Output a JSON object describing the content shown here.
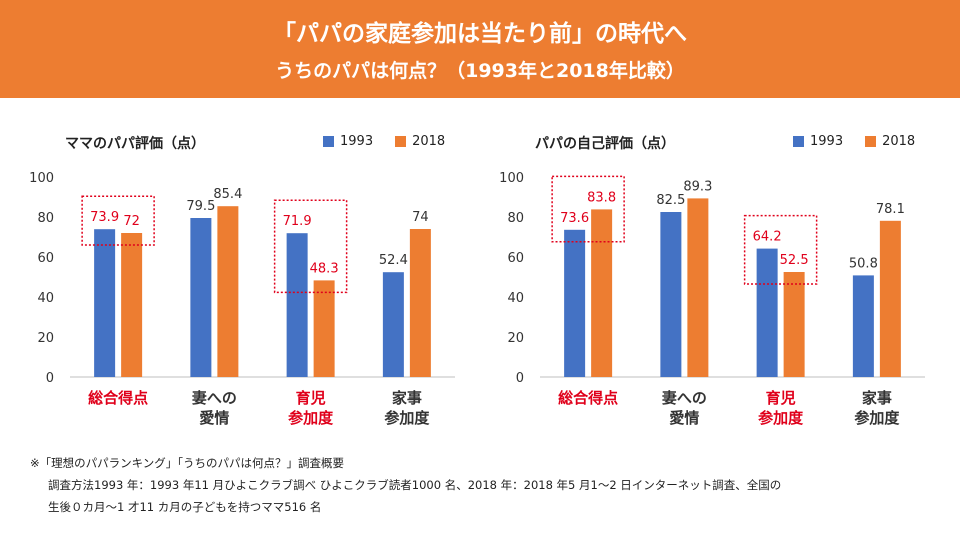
{
  "header": {
    "title": "「パパの家庭参加は当たり前」の時代へ",
    "subtitle": "うちのパパは何点？（1993年と2018年比較）"
  },
  "colors": {
    "banner": "#ed7d31",
    "s1993": "#4472c4",
    "s2018": "#ed7d31",
    "highlight": "#e0001b"
  },
  "chart_data": [
    {
      "type": "bar",
      "title": "ママのパパ評価（点）",
      "categories": [
        "総合得点",
        "妻への\n愛情",
        "育児\n参加度",
        "家事\n参加度"
      ],
      "highlighted_categories": [
        0,
        2
      ],
      "series": [
        {
          "name": "1993",
          "values": [
            73.9,
            79.5,
            71.9,
            52.4
          ]
        },
        {
          "name": "2018",
          "values": [
            72,
            85.4,
            48.3,
            74
          ]
        }
      ],
      "ylim": [
        0,
        100
      ],
      "yticks": [
        0,
        20,
        40,
        60,
        80,
        100
      ],
      "legend": "top-right"
    },
    {
      "type": "bar",
      "title": "パパの自己評価（点）",
      "categories": [
        "総合得点",
        "妻への\n愛情",
        "育児\n参加度",
        "家事\n参加度"
      ],
      "highlighted_categories": [
        0,
        2
      ],
      "series": [
        {
          "name": "1993",
          "values": [
            73.6,
            82.5,
            64.2,
            50.8
          ]
        },
        {
          "name": "2018",
          "values": [
            83.8,
            89.3,
            52.5,
            78.1
          ]
        }
      ],
      "ylim": [
        0,
        100
      ],
      "yticks": [
        0,
        20,
        40,
        60,
        80,
        100
      ],
      "legend": "top-right"
    }
  ],
  "footnote": {
    "line1": "※「理想のパパランキング」「うちのパパは何点？」調査概要",
    "line2": "調査方法1993 年：1993 年11 月ひよこクラブ調べ ひよこクラブ読者1000 名、2018 年：2018 年5 月1〜2 日インターネット調査、全国の",
    "line3": "生後０カ月〜1 才11 カ月の子どもを持つママ516 名"
  }
}
